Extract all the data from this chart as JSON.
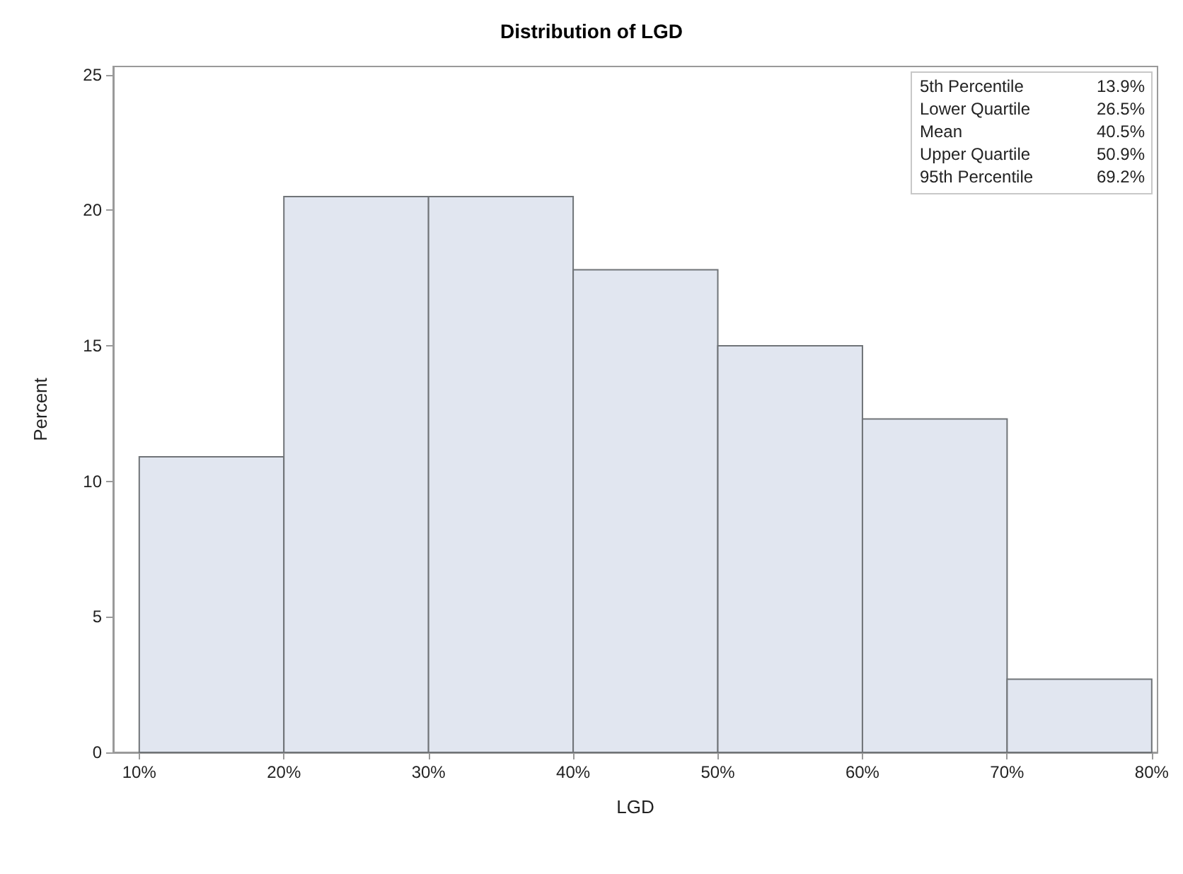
{
  "chart_data": {
    "type": "histogram",
    "title": "Distribution of LGD",
    "xlabel": "LGD",
    "ylabel": "Percent",
    "bins": [
      10,
      20,
      30,
      40,
      50,
      60,
      70,
      80
    ],
    "values": [
      10.9,
      20.5,
      20.5,
      17.8,
      15.0,
      12.3,
      2.7
    ],
    "color": "#e1e6f0",
    "xlim": [
      8.2,
      80.4
    ],
    "xticks": [
      {
        "value": 10,
        "label": "10%"
      },
      {
        "value": 20,
        "label": "20%"
      },
      {
        "value": 30,
        "label": "30%"
      },
      {
        "value": 40,
        "label": "40%"
      },
      {
        "value": 50,
        "label": "50%"
      },
      {
        "value": 60,
        "label": "60%"
      },
      {
        "value": 70,
        "label": "70%"
      },
      {
        "value": 80,
        "label": "80%"
      }
    ],
    "ylim": [
      0,
      25.3
    ],
    "yticks": [
      0,
      5,
      10,
      15,
      20,
      25
    ],
    "grid": false,
    "annotations": [
      "5th Percentile\t13.9%",
      "Lower Quartile\t26.5%",
      "Mean\t40.5%",
      "Upper Quartile\t50.9%",
      "95th Percentile\t69.2%"
    ]
  }
}
